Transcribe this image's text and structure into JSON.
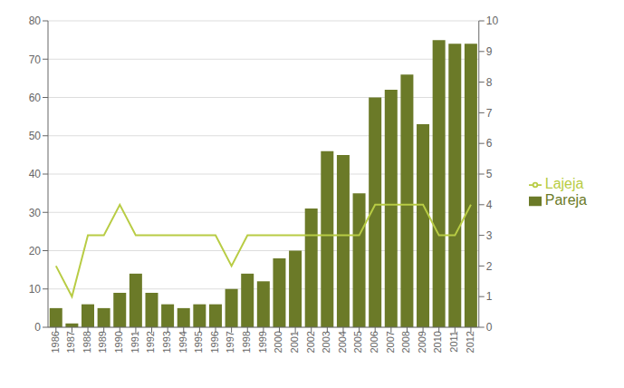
{
  "chart_data": {
    "type": "bar",
    "categories": [
      "1986",
      "1987",
      "1988",
      "1989",
      "1990",
      "1991",
      "1992",
      "1993",
      "1994",
      "1995",
      "1996",
      "1997",
      "1998",
      "1999",
      "2000",
      "2001",
      "2002",
      "2003",
      "2004",
      "2005",
      "2006",
      "2007",
      "2008",
      "2009",
      "2010",
      "2011",
      "2012"
    ],
    "series": [
      {
        "name": "Pareja",
        "type": "bar",
        "color": "#6b7a28",
        "values": [
          5,
          1,
          6,
          5,
          9,
          14,
          9,
          6,
          5,
          6,
          6,
          10,
          14,
          12,
          18,
          20,
          31,
          46,
          45,
          35,
          60,
          62,
          66,
          53,
          75,
          74,
          74
        ]
      },
      {
        "name": "Lajeja",
        "type": "line",
        "color": "#b8cc44",
        "axis": "y2",
        "values": [
          2.0,
          1.0,
          3.0,
          3.0,
          4.0,
          3.0,
          3.0,
          3.0,
          3.0,
          3.0,
          3.0,
          2.0,
          3.0,
          3.0,
          3.0,
          3.0,
          3.0,
          3.0,
          3.0,
          3.0,
          4.0,
          4.0,
          4.0,
          4.0,
          3.0,
          3.0,
          4.0
        ]
      }
    ],
    "ylim": [
      0,
      80
    ],
    "yticks": [
      0,
      10,
      20,
      30,
      40,
      50,
      60,
      70,
      80
    ],
    "y2lim": [
      0,
      10
    ],
    "y2ticks": [
      0,
      1,
      2,
      3,
      4,
      5,
      6,
      7,
      8,
      9,
      10
    ],
    "grid": true,
    "legend": "right"
  }
}
